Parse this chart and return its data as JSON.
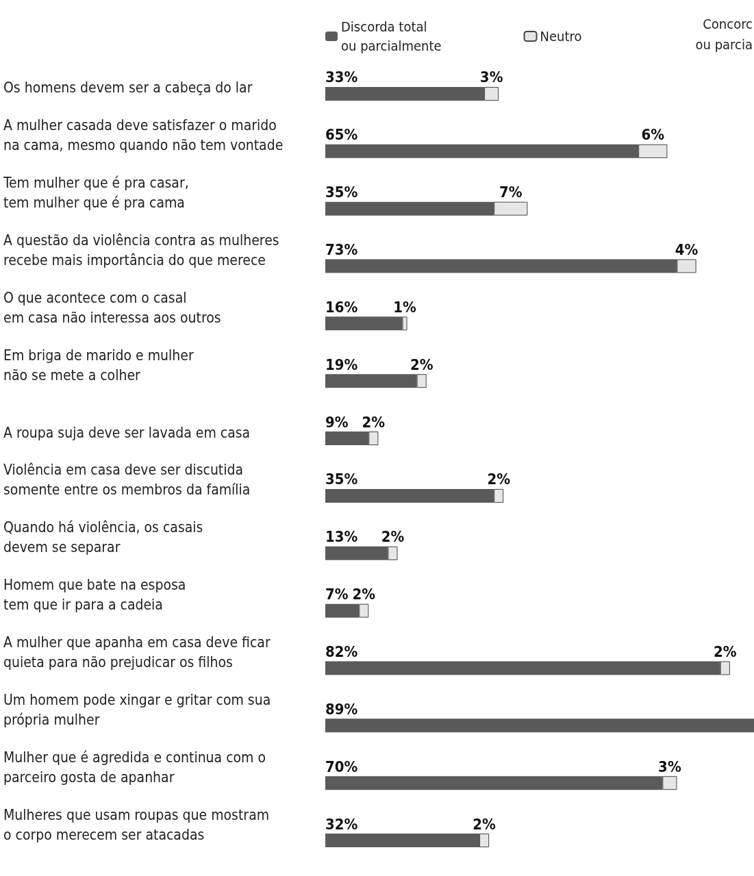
{
  "chart_data": {
    "type": "bar",
    "orientation": "horizontal",
    "stacked": true,
    "categories": [
      "Os homens devem ser a cabeça do lar",
      "A mulher casada deve satisfazer o marido\nna cama, mesmo quando não tem vontade",
      "Tem mulher que é pra casar,\ntem mulher que é pra cama",
      "A questão da violência contra as mulheres\nrecebe mais importância do que merece",
      "O que acontece com o casal\nem casa não interessa aos outros",
      "Em briga de marido e mulher\nnão se mete a colher",
      "A roupa suja deve ser lavada em casa",
      "Violência em casa deve ser discutida\nsomente entre os membros da família",
      "Quando há violência, os casais\ndevem se separar",
      "Homem que bate na esposa\ntem que ir para a cadeia",
      "A mulher que apanha em casa deve ficar\nquieta para não prejudicar os filhos",
      "Um homem pode xingar e gritar com sua\nprópria mulher",
      "Mulher que é agredida e continua com o\nparceiro gosta de apanhar",
      "Mulheres que usam roupas que mostram\no corpo merecem ser atacadas"
    ],
    "series": [
      {
        "name": "Discorda total\nou parcialmente",
        "color": "#5a5a5a",
        "values": [
          33,
          65,
          35,
          73,
          16,
          19,
          9,
          35,
          13,
          7,
          82,
          89,
          70,
          32
        ],
        "value_labels": [
          "33%",
          "65%",
          "35%",
          "73%",
          "16%",
          "19%",
          "9%",
          "35%",
          "13%",
          "7%",
          "82%",
          "89%",
          "70%",
          "32%"
        ]
      },
      {
        "name": "Neutro",
        "color": "#e6e6e6",
        "values": [
          3,
          6,
          7,
          4,
          1,
          2,
          2,
          2,
          2,
          2,
          2,
          null,
          3,
          2
        ],
        "value_labels": [
          "3%",
          "6%",
          "7%",
          "4%",
          "1%",
          "2%",
          "2%",
          "2%",
          "2%",
          "2%",
          "2%",
          null,
          "3%",
          "2%"
        ]
      }
    ],
    "tick_labels": "y",
    "legend": "top",
    "annotations": [
      "Concorc\nou parcia"
    ]
  }
}
